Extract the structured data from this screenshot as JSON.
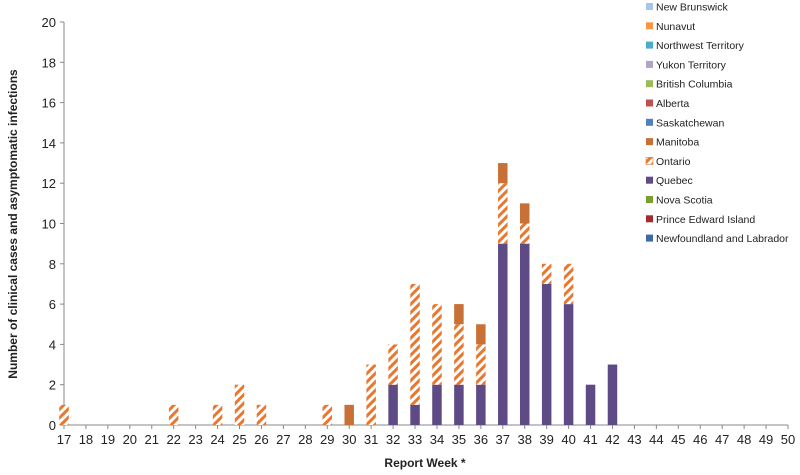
{
  "chart_data": {
    "type": "bar",
    "stacked": true,
    "xlabel": "Report Week *",
    "ylabel": "Number of clinical cases and asymptomatic infections",
    "ylim": [
      0,
      20
    ],
    "yticks": [
      0,
      2,
      4,
      6,
      8,
      10,
      12,
      14,
      16,
      18,
      20
    ],
    "grid": false,
    "legend_position": "top-right",
    "categories": [
      "17",
      "18",
      "19",
      "20",
      "21",
      "22",
      "23",
      "24",
      "25",
      "26",
      "27",
      "28",
      "29",
      "30",
      "31",
      "32",
      "33",
      "34",
      "35",
      "36",
      "37",
      "38",
      "39",
      "40",
      "41",
      "42",
      "43",
      "44",
      "45",
      "46",
      "47",
      "48",
      "49",
      "50"
    ],
    "series": [
      {
        "name": "New Brunswick",
        "color": "#a9c4eb",
        "pattern": "solid",
        "values": [
          0,
          0,
          0,
          0,
          0,
          0,
          0,
          0,
          0,
          0,
          0,
          0,
          0,
          0,
          0,
          0,
          0,
          0,
          0,
          0,
          0,
          0,
          0,
          0,
          0,
          0,
          0,
          0,
          0,
          0,
          0,
          0,
          0,
          0
        ]
      },
      {
        "name": "Nunavut",
        "color": "#f79646",
        "pattern": "solid",
        "values": [
          0,
          0,
          0,
          0,
          0,
          0,
          0,
          0,
          0,
          0,
          0,
          0,
          0,
          0,
          0,
          0,
          0,
          0,
          0,
          0,
          0,
          0,
          0,
          0,
          0,
          0,
          0,
          0,
          0,
          0,
          0,
          0,
          0,
          0
        ]
      },
      {
        "name": "Northwest Territory",
        "color": "#4bacc6",
        "pattern": "solid",
        "values": [
          0,
          0,
          0,
          0,
          0,
          0,
          0,
          0,
          0,
          0,
          0,
          0,
          0,
          0,
          0,
          0,
          0,
          0,
          0,
          0,
          0,
          0,
          0,
          0,
          0,
          0,
          0,
          0,
          0,
          0,
          0,
          0,
          0,
          0
        ]
      },
      {
        "name": "Yukon Territory",
        "color": "#b3a2c7",
        "pattern": "solid",
        "values": [
          0,
          0,
          0,
          0,
          0,
          0,
          0,
          0,
          0,
          0,
          0,
          0,
          0,
          0,
          0,
          0,
          0,
          0,
          0,
          0,
          0,
          0,
          0,
          0,
          0,
          0,
          0,
          0,
          0,
          0,
          0,
          0,
          0,
          0
        ]
      },
      {
        "name": "British Columbia",
        "color": "#9bbb59",
        "pattern": "solid",
        "values": [
          0,
          0,
          0,
          0,
          0,
          0,
          0,
          0,
          0,
          0,
          0,
          0,
          0,
          0,
          0,
          0,
          0,
          0,
          0,
          0,
          0,
          0,
          0,
          0,
          0,
          0,
          0,
          0,
          0,
          0,
          0,
          0,
          0,
          0
        ]
      },
      {
        "name": "Alberta",
        "color": "#c0504d",
        "pattern": "solid",
        "values": [
          0,
          0,
          0,
          0,
          0,
          0,
          0,
          0,
          0,
          0,
          0,
          0,
          0,
          0,
          0,
          0,
          0,
          0,
          0,
          0,
          0,
          0,
          0,
          0,
          0,
          0,
          0,
          0,
          0,
          0,
          0,
          0,
          0,
          0
        ]
      },
      {
        "name": "Saskatchewan",
        "color": "#4f81bd",
        "pattern": "solid",
        "values": [
          0,
          0,
          0,
          0,
          0,
          0,
          0,
          0,
          0,
          0,
          0,
          0,
          0,
          0,
          0,
          0,
          0,
          0,
          0,
          0,
          0,
          0,
          0,
          0,
          0,
          0,
          0,
          0,
          0,
          0,
          0,
          0,
          0,
          0
        ]
      },
      {
        "name": "Manitoba",
        "color": "#c87137",
        "pattern": "solid",
        "values": [
          0,
          0,
          0,
          0,
          0,
          0,
          0,
          0,
          0,
          0,
          0,
          0,
          0,
          1,
          0,
          0,
          0,
          0,
          1,
          1,
          1,
          1,
          0,
          0,
          0,
          0,
          0,
          0,
          0,
          0,
          0,
          0,
          0,
          0
        ]
      },
      {
        "name": "Ontario",
        "color": "#e8782f",
        "pattern": "hatched",
        "values": [
          1,
          0,
          0,
          0,
          0,
          1,
          0,
          1,
          2,
          1,
          0,
          0,
          1,
          0,
          3,
          2,
          6,
          4,
          3,
          2,
          3,
          1,
          1,
          2,
          0,
          0,
          0,
          0,
          0,
          0,
          0,
          0,
          0,
          0
        ]
      },
      {
        "name": "Quebec",
        "color": "#5e4b86",
        "pattern": "solid",
        "values": [
          0,
          0,
          0,
          0,
          0,
          0,
          0,
          0,
          0,
          0,
          0,
          0,
          0,
          0,
          0,
          2,
          1,
          2,
          2,
          2,
          9,
          9,
          7,
          6,
          2,
          3,
          0,
          0,
          0,
          0,
          0,
          0,
          0,
          0
        ]
      },
      {
        "name": "Nova Scotia",
        "color": "#77a02e",
        "pattern": "solid",
        "values": [
          0,
          0,
          0,
          0,
          0,
          0,
          0,
          0,
          0,
          0,
          0,
          0,
          0,
          0,
          0,
          0,
          0,
          0,
          0,
          0,
          0,
          0,
          0,
          0,
          0,
          0,
          0,
          0,
          0,
          0,
          0,
          0,
          0,
          0
        ]
      },
      {
        "name": "Prince Edward Island",
        "color": "#a52a2a",
        "pattern": "solid",
        "values": [
          0,
          0,
          0,
          0,
          0,
          0,
          0,
          0,
          0,
          0,
          0,
          0,
          0,
          0,
          0,
          0,
          0,
          0,
          0,
          0,
          0,
          0,
          0,
          0,
          0,
          0,
          0,
          0,
          0,
          0,
          0,
          0,
          0,
          0
        ]
      },
      {
        "name": "Newfoundland and Labrador",
        "color": "#3d6ba8",
        "pattern": "solid",
        "values": [
          0,
          0,
          0,
          0,
          0,
          0,
          0,
          0,
          0,
          0,
          0,
          0,
          0,
          0,
          0,
          0,
          0,
          0,
          0,
          0,
          0,
          0,
          0,
          0,
          0,
          0,
          0,
          0,
          0,
          0,
          0,
          0,
          0,
          0
        ]
      }
    ],
    "stack_order": [
      "Quebec",
      "Ontario",
      "Manitoba"
    ]
  }
}
